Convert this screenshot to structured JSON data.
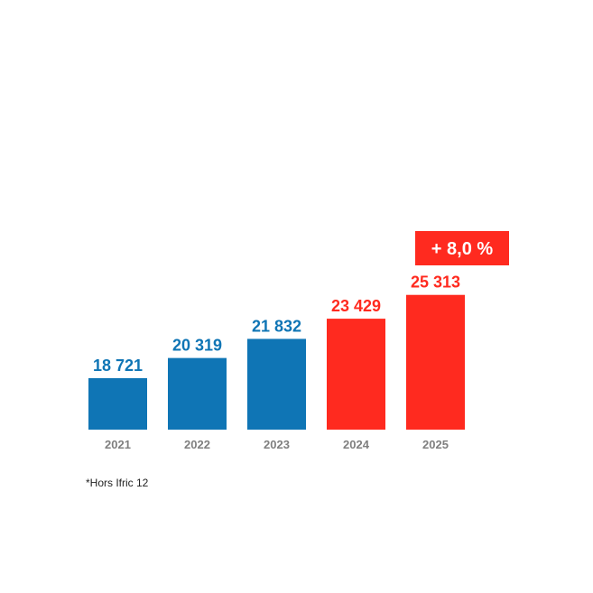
{
  "chart_data": {
    "type": "bar",
    "categories": [
      "2021",
      "2022",
      "2023",
      "2024",
      "2025"
    ],
    "values": [
      18721,
      20319,
      21832,
      23429,
      25313
    ],
    "value_labels": [
      "18 721",
      "20 319",
      "21 832",
      "23 429",
      "25 313"
    ],
    "bar_colors": [
      "#0f75b5",
      "#0f75b5",
      "#0f75b5",
      "#ff2a1f",
      "#ff2a1f"
    ],
    "label_colors": [
      "#0f75b5",
      "#0f75b5",
      "#0f75b5",
      "#ff2a1f",
      "#ff2a1f"
    ],
    "tick_color": "#7f7f7f",
    "badge": {
      "text": "+ 8,0 %",
      "color": "#ff2a1f"
    },
    "grid": false,
    "title": "",
    "xlabel": "",
    "ylabel": ""
  },
  "footnote": "*Hors Ifric 12"
}
